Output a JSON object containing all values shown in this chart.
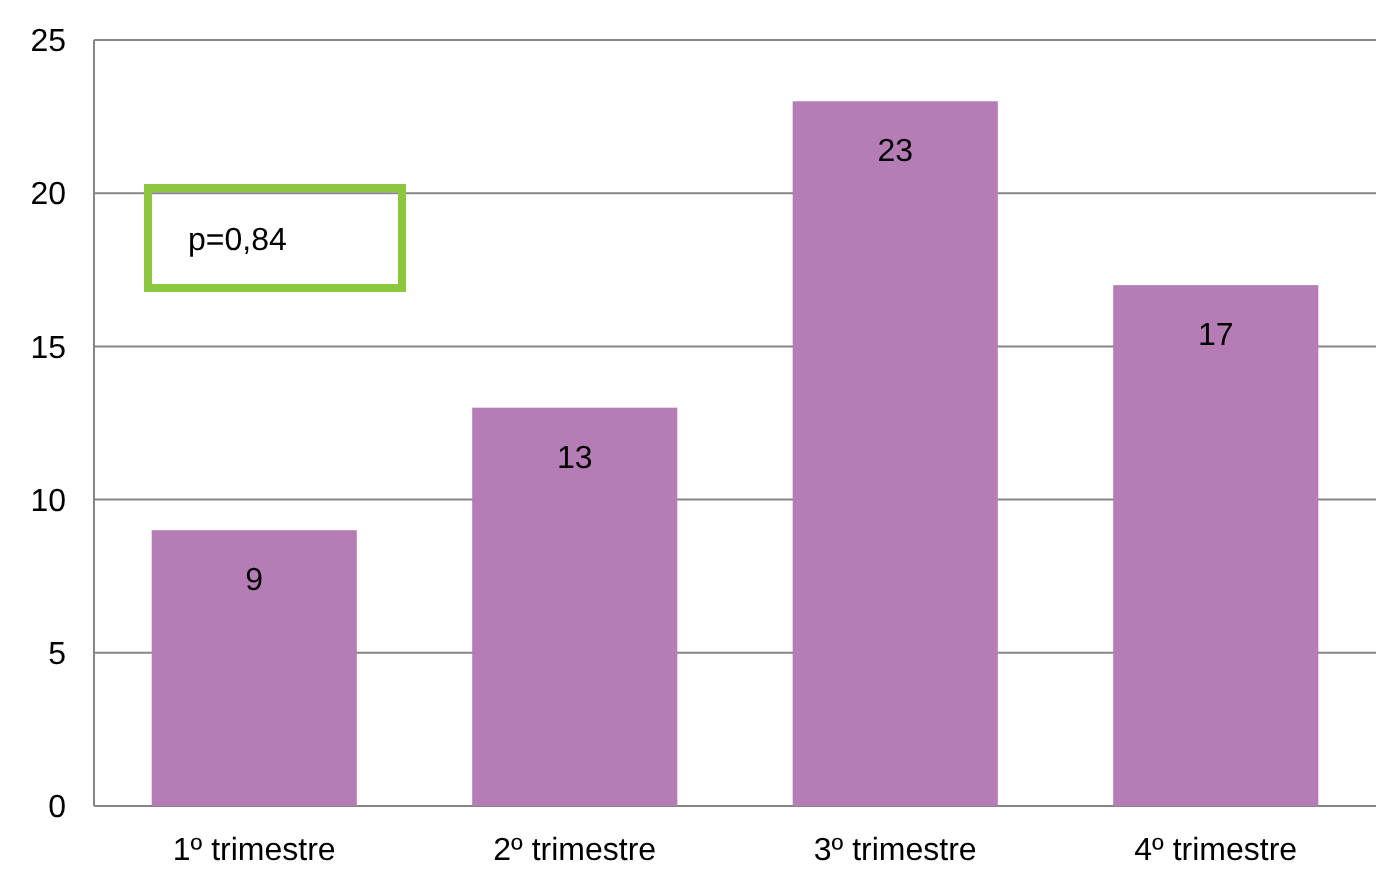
{
  "chart_data": {
    "type": "bar",
    "categories": [
      "1º trimestre",
      "2º trimestre",
      "3º trimestre",
      "4º trimestre"
    ],
    "values": [
      9,
      13,
      23,
      17
    ],
    "color": "#b57cb5",
    "ylim": [
      0,
      25
    ],
    "yticks": [
      0,
      5,
      10,
      15,
      20,
      25
    ],
    "grid": "y",
    "data_labels": true,
    "annotations": [
      "p=0,84"
    ]
  }
}
